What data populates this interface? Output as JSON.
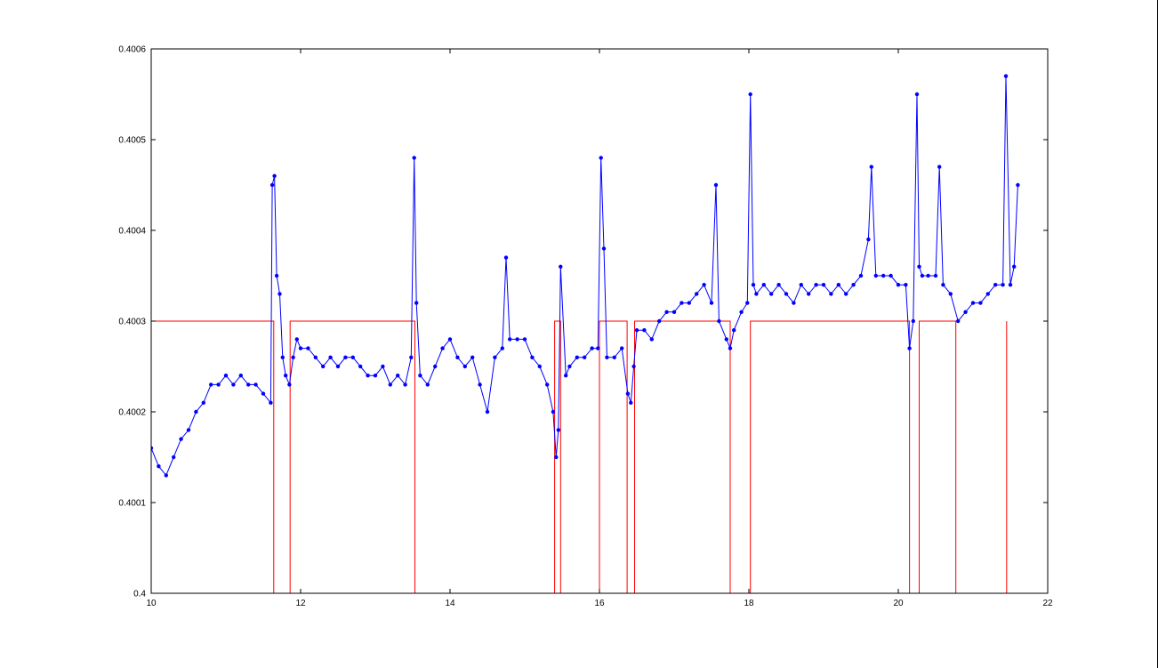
{
  "chart_data": {
    "type": "line",
    "title": "",
    "xlabel": "",
    "ylabel": "",
    "xlim": [
      10,
      22
    ],
    "ylim": [
      0.4,
      0.4006
    ],
    "x_ticks": [
      10,
      12,
      14,
      16,
      18,
      20,
      22
    ],
    "x_tick_labels": [
      "10",
      "12",
      "14",
      "16",
      "18",
      "20",
      "22"
    ],
    "y_ticks": [
      0.4,
      0.4001,
      0.4002,
      0.4003,
      0.4004,
      0.4005,
      0.4006
    ],
    "y_tick_labels": [
      "0.4",
      "0.4001",
      "0.4002",
      "0.4003",
      "0.4004",
      "0.4005",
      "0.4006"
    ],
    "grid": false,
    "legend": "none",
    "series": [
      {
        "style": "line with dot markers",
        "color": "#0000ff",
        "x": [
          10.0,
          10.1,
          10.2,
          10.3,
          10.4,
          10.5,
          10.6,
          10.7,
          10.8,
          10.9,
          11.0,
          11.1,
          11.2,
          11.3,
          11.4,
          11.5,
          11.6,
          11.62,
          11.65,
          11.68,
          11.72,
          11.76,
          11.8,
          11.85,
          11.9,
          11.95,
          12.0,
          12.1,
          12.2,
          12.3,
          12.4,
          12.5,
          12.6,
          12.7,
          12.8,
          12.9,
          13.0,
          13.1,
          13.2,
          13.3,
          13.4,
          13.48,
          13.52,
          13.55,
          13.6,
          13.7,
          13.8,
          13.9,
          14.0,
          14.1,
          14.2,
          14.3,
          14.4,
          14.5,
          14.6,
          14.7,
          14.75,
          14.8,
          14.9,
          15.0,
          15.1,
          15.2,
          15.3,
          15.38,
          15.42,
          15.45,
          15.48,
          15.55,
          15.6,
          15.7,
          15.8,
          15.9,
          15.98,
          16.02,
          16.06,
          16.1,
          16.2,
          16.3,
          16.38,
          16.42,
          16.46,
          16.5,
          16.6,
          16.7,
          16.8,
          16.9,
          17.0,
          17.1,
          17.2,
          17.3,
          17.4,
          17.5,
          17.56,
          17.6,
          17.7,
          17.75,
          17.8,
          17.9,
          17.98,
          18.02,
          18.06,
          18.1,
          18.2,
          18.3,
          18.4,
          18.5,
          18.6,
          18.7,
          18.8,
          18.9,
          19.0,
          19.1,
          19.2,
          19.3,
          19.4,
          19.5,
          19.6,
          19.64,
          19.7,
          19.8,
          19.9,
          20.0,
          20.1,
          20.15,
          20.2,
          20.25,
          20.28,
          20.32,
          20.4,
          20.5,
          20.55,
          20.6,
          20.7,
          20.8,
          20.9,
          21.0,
          21.1,
          21.2,
          21.3,
          21.4,
          21.44,
          21.5,
          21.55,
          21.6
        ],
        "y": [
          0.40016,
          0.40014,
          0.40013,
          0.40015,
          0.40017,
          0.40018,
          0.4002,
          0.40021,
          0.40023,
          0.40023,
          0.40024,
          0.40023,
          0.40024,
          0.40023,
          0.40023,
          0.40022,
          0.40021,
          0.40045,
          0.40046,
          0.40035,
          0.40033,
          0.40026,
          0.40024,
          0.40023,
          0.40026,
          0.40028,
          0.40027,
          0.40027,
          0.40026,
          0.40025,
          0.40026,
          0.40025,
          0.40026,
          0.40026,
          0.40025,
          0.40024,
          0.40024,
          0.40025,
          0.40023,
          0.40024,
          0.40023,
          0.40026,
          0.40048,
          0.40032,
          0.40024,
          0.40023,
          0.40025,
          0.40027,
          0.40028,
          0.40026,
          0.40025,
          0.40026,
          0.40023,
          0.4002,
          0.40026,
          0.40027,
          0.40037,
          0.40028,
          0.40028,
          0.40028,
          0.40026,
          0.40025,
          0.40023,
          0.4002,
          0.40015,
          0.40018,
          0.40036,
          0.40024,
          0.40025,
          0.40026,
          0.40026,
          0.40027,
          0.40027,
          0.40048,
          0.40038,
          0.40026,
          0.40026,
          0.40027,
          0.40022,
          0.40021,
          0.40025,
          0.40029,
          0.40029,
          0.40028,
          0.4003,
          0.40031,
          0.40031,
          0.40032,
          0.40032,
          0.40033,
          0.40034,
          0.40032,
          0.40045,
          0.4003,
          0.40028,
          0.40027,
          0.40029,
          0.40031,
          0.40032,
          0.40055,
          0.40034,
          0.40033,
          0.40034,
          0.40033,
          0.40034,
          0.40033,
          0.40032,
          0.40034,
          0.40033,
          0.40034,
          0.40034,
          0.40033,
          0.40034,
          0.40033,
          0.40034,
          0.40035,
          0.40039,
          0.40047,
          0.40035,
          0.40035,
          0.40035,
          0.40034,
          0.40034,
          0.40027,
          0.4003,
          0.40055,
          0.40036,
          0.40035,
          0.40035,
          0.40035,
          0.40047,
          0.40034,
          0.40033,
          0.4003,
          0.40031,
          0.40032,
          0.40032,
          0.40033,
          0.40034,
          0.40034,
          0.40057,
          0.40034,
          0.40036,
          0.40045
        ]
      },
      {
        "style": "step",
        "color": "#ff0000",
        "x": [
          10.0,
          11.64,
          11.64,
          11.86,
          11.86,
          13.53,
          13.53,
          15.4,
          15.4,
          15.48,
          15.48,
          16.0,
          16.0,
          16.37,
          16.37,
          16.47,
          16.47,
          17.75,
          17.75,
          18.02,
          18.02,
          20.15,
          20.15,
          20.28,
          20.28,
          20.77,
          20.77,
          21.45,
          21.45
        ],
        "y": [
          0.4003,
          0.4003,
          0.4,
          0.4,
          0.4003,
          0.4003,
          0.4,
          0.4,
          0.4003,
          0.4003,
          0.4,
          0.4,
          0.4003,
          0.4003,
          0.4,
          0.4,
          0.4003,
          0.4003,
          0.4,
          0.4,
          0.4003,
          0.4003,
          0.4,
          0.4,
          0.4003,
          0.4003,
          0.4,
          0.4,
          0.4003
        ]
      }
    ]
  }
}
